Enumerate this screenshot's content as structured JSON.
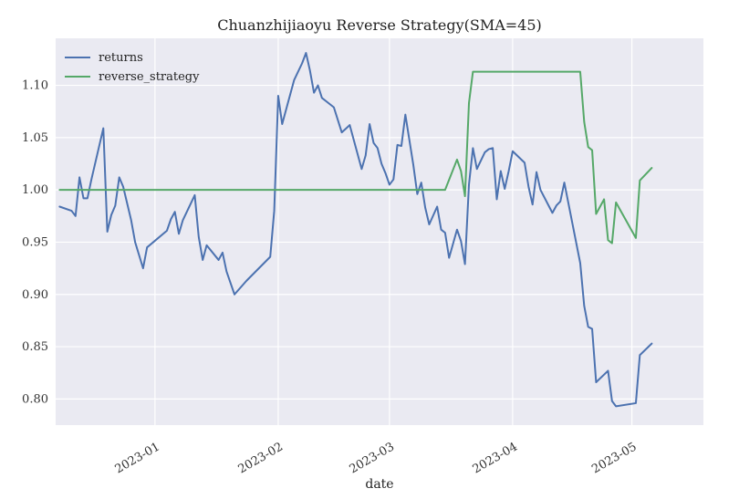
{
  "chart_data": {
    "type": "line",
    "title": "Chuanzhijiaoyu Reverse Strategy(SMA=45)",
    "xlabel": "date",
    "ylabel": "",
    "ylim": [
      0.775,
      1.145
    ],
    "xlim": [
      -25,
      138
    ],
    "yticks": [
      0.8,
      0.85,
      0.9,
      0.95,
      1.0,
      1.05,
      1.1
    ],
    "ytick_labels": [
      "0.80",
      "0.85",
      "0.90",
      "0.95",
      "1.00",
      "1.05",
      "1.10"
    ],
    "xticks": [
      0,
      31,
      59,
      90,
      120
    ],
    "xtick_labels": [
      "2023-01",
      "2023-02",
      "2023-03",
      "2023-04",
      "2023-05"
    ],
    "grid": true,
    "legend_position": "top-left",
    "colors": {
      "returns": "#4c72b0",
      "reverse_strategy": "#55a868",
      "grid": "#ffffff",
      "plot_bg": "#eaeaf2"
    },
    "series": [
      {
        "name": "returns",
        "x": [
          -24,
          -21,
          -20,
          -19,
          -18,
          -17,
          -16,
          -13,
          -12,
          -11,
          -10,
          -9,
          -8,
          -6,
          -5,
          -3,
          -2,
          3,
          4,
          5,
          6,
          7,
          10,
          11,
          12,
          13,
          16,
          17,
          18,
          20,
          23,
          29,
          30,
          31,
          32,
          35,
          37,
          38,
          39,
          40,
          41,
          42,
          43,
          45,
          47,
          49,
          52,
          53,
          54,
          55,
          56,
          57,
          58,
          59,
          60,
          61,
          62,
          63,
          65,
          66,
          67,
          68,
          69,
          71,
          72,
          73,
          74,
          76,
          77,
          78,
          79,
          80,
          81,
          83,
          84,
          85,
          86,
          87,
          88,
          89,
          90,
          93,
          94,
          95,
          96,
          97,
          100,
          101,
          102,
          103,
          107,
          108,
          109,
          110,
          111,
          114,
          115,
          116,
          121,
          122,
          125
        ],
        "values": [
          0.984,
          0.98,
          0.975,
          1.012,
          0.992,
          0.992,
          1.01,
          1.059,
          0.96,
          0.976,
          0.985,
          1.012,
          1.003,
          0.971,
          0.95,
          0.925,
          0.945,
          0.961,
          0.972,
          0.979,
          0.958,
          0.971,
          0.995,
          0.955,
          0.933,
          0.947,
          0.933,
          0.94,
          0.922,
          0.9,
          0.913,
          0.936,
          0.98,
          1.09,
          1.063,
          1.105,
          1.121,
          1.131,
          1.114,
          1.093,
          1.1,
          1.088,
          1.085,
          1.079,
          1.055,
          1.062,
          1.02,
          1.033,
          1.063,
          1.045,
          1.04,
          1.025,
          1.016,
          1.005,
          1.01,
          1.043,
          1.042,
          1.072,
          1.024,
          0.996,
          1.007,
          0.983,
          0.967,
          0.984,
          0.962,
          0.959,
          0.935,
          0.962,
          0.951,
          0.929,
          1.005,
          1.04,
          1.02,
          1.036,
          1.039,
          1.04,
          0.991,
          1.018,
          1.001,
          1.018,
          1.037,
          1.026,
          1.003,
          0.986,
          1.017,
          1.0,
          0.978,
          0.985,
          0.989,
          1.007,
          0.93,
          0.889,
          0.869,
          0.867,
          0.816,
          0.827,
          0.798,
          0.793,
          0.796,
          0.842,
          0.853
        ]
      },
      {
        "name": "reverse_strategy",
        "x": [
          -24,
          63,
          67,
          71,
          73,
          76,
          77,
          78,
          79,
          80,
          107,
          108,
          109,
          110,
          111,
          113,
          114,
          115,
          116,
          121,
          122,
          125
        ],
        "values": [
          1.0,
          1.0,
          1.0,
          1.0,
          1.0,
          1.029,
          1.018,
          0.994,
          1.083,
          1.113,
          1.113,
          1.065,
          1.041,
          1.038,
          0.977,
          0.991,
          0.952,
          0.949,
          0.988,
          0.954,
          1.009,
          1.021
        ]
      }
    ]
  }
}
